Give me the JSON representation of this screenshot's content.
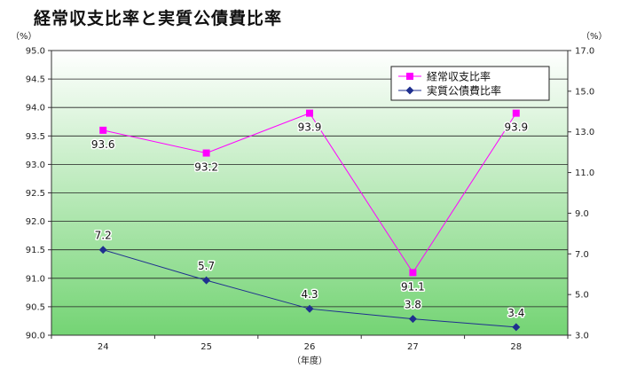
{
  "chart_data": {
    "type": "line",
    "title": "経常収支比率と実質公債費比率",
    "xlabel": "（年度）",
    "y_left_unit": "（%）",
    "y_right_unit": "（%）",
    "categories": [
      "24",
      "25",
      "26",
      "27",
      "28"
    ],
    "y_left": {
      "min": 90.0,
      "max": 95.0,
      "step": 0.5,
      "ticks": [
        "90.0",
        "90.5",
        "91.0",
        "91.5",
        "92.0",
        "92.5",
        "93.0",
        "93.5",
        "94.0",
        "94.5",
        "95.0"
      ]
    },
    "y_right": {
      "min": 3.0,
      "max": 17.0,
      "step": 2.0,
      "ticks": [
        "3.0",
        "5.0",
        "7.0",
        "9.0",
        "11.0",
        "13.0",
        "15.0",
        "17.0"
      ]
    },
    "series": [
      {
        "name": "経常収支比率",
        "axis": "left",
        "color": "#ff00ff",
        "marker": "square",
        "values": [
          93.6,
          93.2,
          93.9,
          91.1,
          93.9
        ],
        "labels": [
          "93.6",
          "93.2",
          "93.9",
          "91.1",
          "93.9"
        ]
      },
      {
        "name": "実質公債費比率",
        "axis": "right",
        "color": "#1f2f8f",
        "marker": "diamond",
        "values": [
          7.2,
          5.7,
          4.3,
          3.8,
          3.4
        ],
        "labels": [
          "7.2",
          "5.7",
          "4.3",
          "3.8",
          "3.4"
        ]
      }
    ],
    "grid": true,
    "legend_position": "top-right"
  }
}
